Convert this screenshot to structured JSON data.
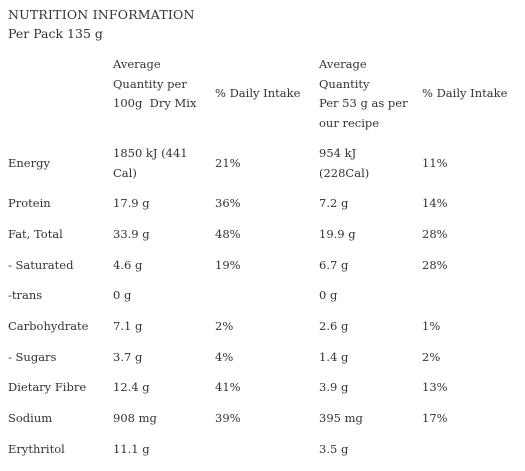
{
  "title": "NUTRITION INFORMATION",
  "subtitle": "Per Pack 135 g",
  "headers": [
    "",
    "Average\nQuantity per\n100g  Dry Mix",
    "% Daily Intake",
    "Average\nQuantity\nPer 53 g as per\nour recipe",
    "% Daily Intake"
  ],
  "rows": [
    [
      "Energy",
      "1850 kJ (441\nCal)",
      "21%",
      "954 kJ\n(228Cal)",
      "11%"
    ],
    [
      "Protein",
      "17.9 g",
      "36%",
      "7.2 g",
      "14%"
    ],
    [
      "Fat, Total",
      "33.9 g",
      "48%",
      "19.9 g",
      "28%"
    ],
    [
      "- Saturated",
      "4.6 g",
      "19%",
      "6.7 g",
      "28%"
    ],
    [
      "-trans",
      "0 g",
      "",
      "0 g",
      ""
    ],
    [
      "Carbohydrate",
      "7.1 g",
      "2%",
      "2.6 g",
      "1%"
    ],
    [
      "- Sugars",
      "3.7 g",
      "4%",
      "1.4 g",
      "2%"
    ],
    [
      "Dietary Fibre",
      "12.4 g",
      "41%",
      "3.9 g",
      "13%"
    ],
    [
      "Sodium",
      "908 mg",
      "39%",
      "395 mg",
      "17%"
    ],
    [
      "Erythritol",
      "11.1 g",
      "",
      "3.5 g",
      ""
    ]
  ]
}
